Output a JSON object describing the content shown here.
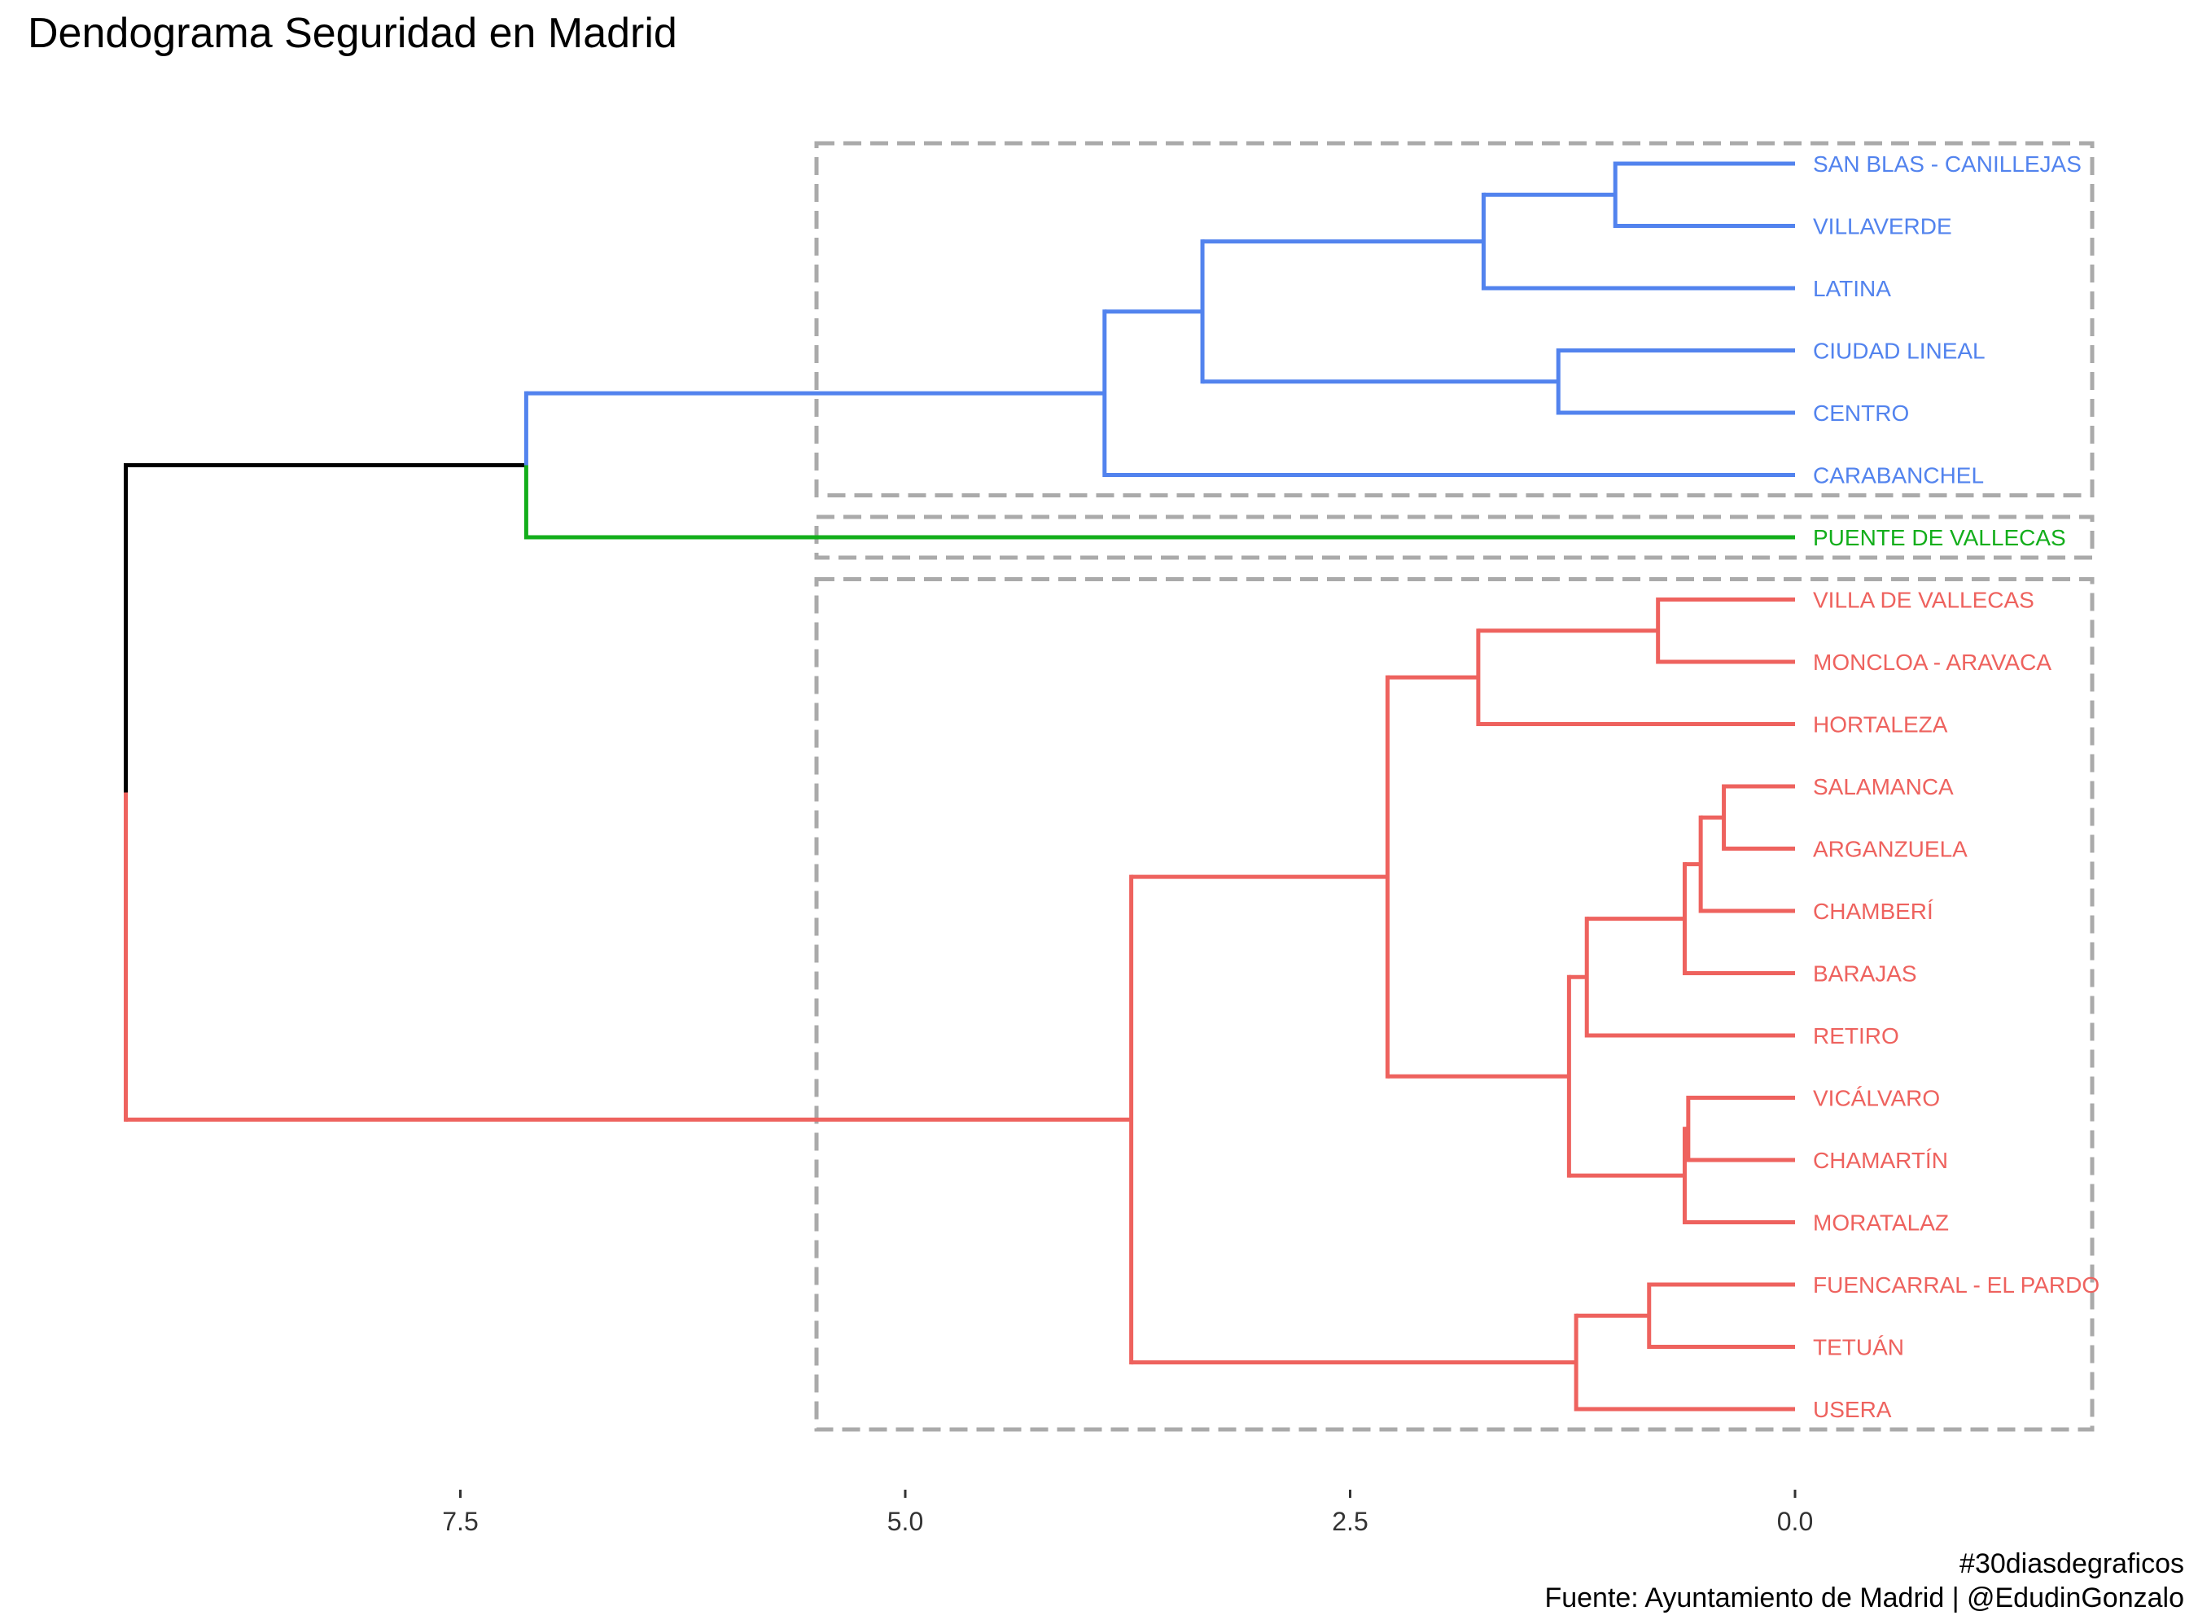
{
  "chart_data": {
    "type": "dendrogram",
    "title": "Dendograma Seguridad en Madrid",
    "caption_lines": [
      "#30diasdegraficos",
      "Fuente: Ayuntamiento de Madrid | @EdudinGonzalo"
    ],
    "x_ticks": [
      7.5,
      5.0,
      2.5,
      0.0
    ],
    "x_tick_labels": [
      "7.5",
      "5.0",
      "2.5",
      "0.0"
    ],
    "x_reversed": true,
    "x_range": [
      10.8,
      -1.7
    ],
    "leaves": [
      {
        "label": "SAN BLAS - CANILLEJAS",
        "cluster": 1
      },
      {
        "label": "VILLAVERDE",
        "cluster": 1
      },
      {
        "label": "LATINA",
        "cluster": 1
      },
      {
        "label": "CIUDAD LINEAL",
        "cluster": 1
      },
      {
        "label": "CENTRO",
        "cluster": 1
      },
      {
        "label": "CARABANCHEL",
        "cluster": 1
      },
      {
        "label": "PUENTE DE VALLECAS",
        "cluster": 2
      },
      {
        "label": "VILLA DE VALLECAS",
        "cluster": 3
      },
      {
        "label": "MONCLOA - ARAVACA",
        "cluster": 3
      },
      {
        "label": "HORTALEZA",
        "cluster": 3
      },
      {
        "label": "SALAMANCA",
        "cluster": 3
      },
      {
        "label": "ARGANZUELA",
        "cluster": 3
      },
      {
        "label": "CHAMBERÍ",
        "cluster": 3
      },
      {
        "label": "BARAJAS",
        "cluster": 3
      },
      {
        "label": "RETIRO",
        "cluster": 3
      },
      {
        "label": "VICÁLVARO",
        "cluster": 3
      },
      {
        "label": "CHAMARTÍN",
        "cluster": 3
      },
      {
        "label": "MORATALAZ",
        "cluster": 3
      },
      {
        "label": "FUENCARRAL - EL PARDO",
        "cluster": 3
      },
      {
        "label": "TETUÁN",
        "cluster": 3
      },
      {
        "label": "USERA",
        "cluster": 3
      }
    ],
    "merges": [
      {
        "a": "SAN BLAS - CANILLEJAS",
        "b": "VILLAVERDE",
        "height": 1.01
      },
      {
        "a": "m1",
        "b": "LATINA",
        "height": 1.75
      },
      {
        "a": "CIUDAD LINEAL",
        "b": "CENTRO",
        "height": 1.33
      },
      {
        "a": "m2",
        "b": "m3",
        "height": 3.33
      },
      {
        "a": "m4",
        "b": "CARABANCHEL",
        "height": 3.88
      },
      {
        "a": "m5",
        "b": "PUENTE DE VALLECAS",
        "height": 7.13
      },
      {
        "a": "VILLA DE VALLECAS",
        "b": "MONCLOA - ARAVACA",
        "height": 0.77
      },
      {
        "a": "m7",
        "b": "HORTALEZA",
        "height": 1.78
      },
      {
        "a": "SALAMANCA",
        "b": "ARGANZUELA",
        "height": 0.4
      },
      {
        "a": "m9",
        "b": "CHAMBERÍ",
        "height": 0.53
      },
      {
        "a": "m10",
        "b": "BARAJAS",
        "height": 0.62
      },
      {
        "a": "m11",
        "b": "RETIRO",
        "height": 1.17
      },
      {
        "a": "VICÁLVARO",
        "b": "CHAMARTÍN",
        "height": 0.6
      },
      {
        "a": "m13",
        "b": "MORATALAZ",
        "height": 0.62
      },
      {
        "a": "m12",
        "b": "m14",
        "height": 1.27
      },
      {
        "a": "m8",
        "b": "m15",
        "height": 2.29
      },
      {
        "a": "FUENCARRAL - EL PARDO",
        "b": "TETUÁN",
        "height": 0.82
      },
      {
        "a": "m17",
        "b": "USERA",
        "height": 1.23
      },
      {
        "a": "m16",
        "b": "m18",
        "height": 3.73
      },
      {
        "a": "m6",
        "b": "m19",
        "height": 9.38
      }
    ],
    "cluster_colors": {
      "1": "#5283EE",
      "2": "#13AE1B",
      "3": "#EE625E"
    },
    "root_color": "#000000",
    "box_color": "#AAAAAA"
  }
}
